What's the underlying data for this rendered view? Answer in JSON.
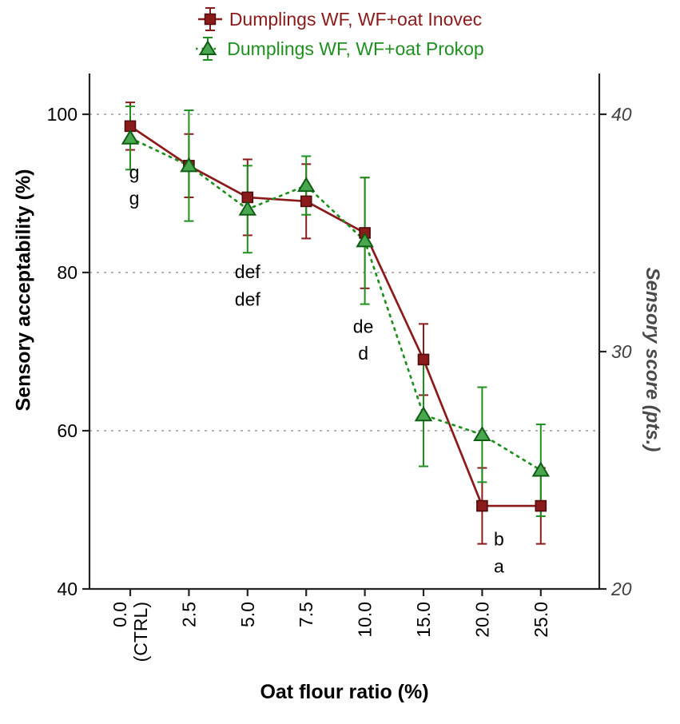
{
  "chart_data": {
    "type": "line",
    "title": "",
    "xlabel": "Oat flour ratio (%)",
    "ylabel_left": "Sensory acceptability (%)",
    "ylabel_right": "Sensory score (pts.)",
    "x_categories": [
      "0.0 (CTRL)",
      "2.5",
      "5.0",
      "7.5",
      "10.0",
      "15.0",
      "20.0",
      "25.0"
    ],
    "x_tick_labels": [
      "0.0\n(CTRL)",
      "2.5",
      "5.0",
      "7.5",
      "10.0",
      "15.0",
      "20.0",
      "25.0"
    ],
    "ylim_left": [
      40,
      100
    ],
    "yticks_left": [
      40,
      60,
      80,
      100
    ],
    "ylim_right": [
      20,
      40
    ],
    "yticks_right": [
      20,
      30,
      40
    ],
    "gridlines_at": [
      60,
      80,
      100
    ],
    "grid_color": "#9a9a9a",
    "legend_position": "top-center",
    "series": [
      {
        "name": "Dumplings WF, WF+oat Inovec",
        "color": "#8b1a1a",
        "marker": "square",
        "marker_fill": "#8b1a1a",
        "marker_edge": "#4f0d0d",
        "line_style": "solid",
        "values": [
          98.5,
          93.5,
          89.5,
          89,
          85,
          69,
          50.5,
          50.5
        ],
        "errors": [
          3,
          4,
          4.8,
          4.7,
          7,
          4.5,
          4.8,
          4.8
        ]
      },
      {
        "name": "Dumplings WF, WF+oat Prokop",
        "color": "#1f8f1f",
        "marker": "triangle",
        "marker_fill": "#49a84f",
        "marker_edge": "#0f5c14",
        "line_style": "dotted",
        "values": [
          97,
          93.5,
          88,
          91,
          84,
          62,
          59.5,
          55
        ],
        "errors": [
          4,
          7,
          5.5,
          3.7,
          8,
          6.5,
          6,
          5.8
        ]
      }
    ],
    "annotations": [
      {
        "category_index": 0,
        "dx": 5,
        "lines": [
          {
            "text": "g",
            "value": 92.7
          },
          {
            "text": "g",
            "value": 89.4
          }
        ]
      },
      {
        "category_index": 2,
        "dx": 0,
        "lines": [
          {
            "text": "def",
            "value": 80.1
          },
          {
            "text": "def",
            "value": 76.6
          }
        ]
      },
      {
        "category_index": 4,
        "dx": -2,
        "lines": [
          {
            "text": "de",
            "value": 73.2
          },
          {
            "text": "d",
            "value": 69.8
          }
        ]
      },
      {
        "category_index": 6,
        "dx": 21,
        "lines": [
          {
            "text": "b",
            "value": 46.3
          },
          {
            "text": "a",
            "value": 42.9
          }
        ]
      }
    ]
  }
}
